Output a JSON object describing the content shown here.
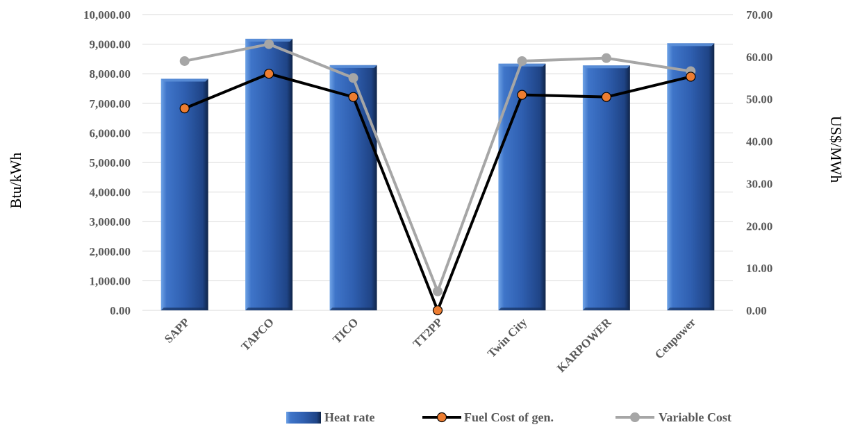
{
  "chart_data": {
    "type": "bar",
    "title": "",
    "categories": [
      "SAPP",
      "TAPCO",
      "TICO",
      "TT2PP",
      "Twin City",
      "KARPOWER",
      "Cenpower"
    ],
    "series": [
      {
        "name": "Heat rate",
        "type": "bar",
        "axis": "left",
        "color": "#2f5597",
        "values": [
          7830,
          9180,
          8290,
          0,
          8340,
          8280,
          9030
        ]
      },
      {
        "name": "Fuel Cost of gen.",
        "type": "line",
        "axis": "right",
        "color": "#000000",
        "marker_color": "#ed7d31",
        "values": [
          47.8,
          56.0,
          50.5,
          0.0,
          51.0,
          50.5,
          55.3
        ]
      },
      {
        "name": "Variable Cost",
        "type": "line",
        "axis": "right",
        "color": "#a6a6a6",
        "marker_color": "#a6a6a6",
        "values": [
          59.0,
          63.0,
          55.0,
          4.5,
          59.0,
          59.7,
          56.6
        ]
      }
    ],
    "ylabel": "Btu/kWh",
    "y2label": "US$/MWh",
    "ylim": [
      0,
      10000
    ],
    "y2lim": [
      0,
      70
    ],
    "yticks": [
      "0.00",
      "1,000.00",
      "2,000.00",
      "3,000.00",
      "4,000.00",
      "5,000.00",
      "6,000.00",
      "7,000.00",
      "8,000.00",
      "9,000.00",
      "10,000.00"
    ],
    "y2ticks": [
      "0.00",
      "10.00",
      "20.00",
      "30.00",
      "40.00",
      "50.00",
      "60.00",
      "70.00"
    ],
    "grid": true,
    "legend_position": "bottom"
  }
}
